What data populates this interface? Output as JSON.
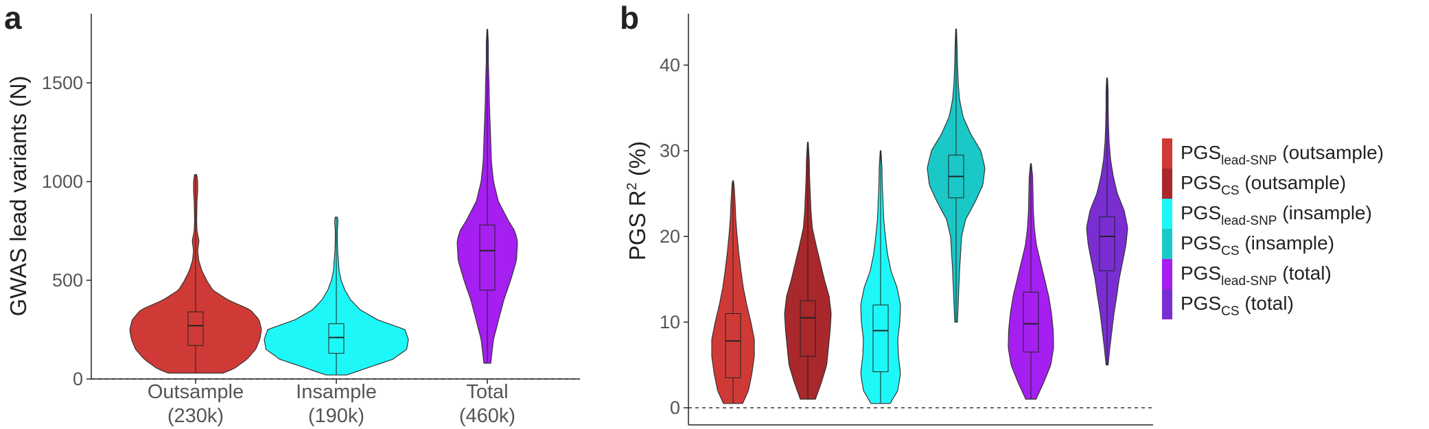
{
  "colors": {
    "red": "#D03A36",
    "darkred": "#A8282B",
    "cyan": "#1EF7F7",
    "teal": "#1BC8C8",
    "purple": "#A51FF0",
    "darkpurple": "#7A2ED2"
  },
  "panels": {
    "a": {
      "letter": "a"
    },
    "b": {
      "letter": "b"
    }
  },
  "legend": {
    "items": [
      {
        "base": "PGS",
        "sub": "lead-SNP",
        "suffix": " (outsample)",
        "color": "#D03A36"
      },
      {
        "base": "PGS",
        "sub": "CS",
        "suffix": " (outsample)",
        "color": "#A8282B"
      },
      {
        "base": "PGS",
        "sub": "lead-SNP",
        "suffix": " (insample)",
        "color": "#1EF7F7"
      },
      {
        "base": "PGS",
        "sub": "CS",
        "suffix": " (insample)",
        "color": "#1BC8C8"
      },
      {
        "base": "PGS",
        "sub": "lead-SNP",
        "suffix": " (total)",
        "color": "#A51FF0"
      },
      {
        "base": "PGS",
        "sub": "CS",
        "suffix": " (total)",
        "color": "#7A2ED2"
      }
    ]
  },
  "chart_data": [
    {
      "panel": "a",
      "type": "violin",
      "ylabel": "GWAS lead variants (N)",
      "ylim": [
        0,
        1850
      ],
      "yticks": [
        0,
        500,
        1000,
        1500
      ],
      "reference_line": 0,
      "categories": [
        {
          "line1": "Outsample",
          "line2": "(230k)"
        },
        {
          "line1": "Insample",
          "line2": "(190k)"
        },
        {
          "line1": "Total",
          "line2": "(460k)"
        }
      ],
      "series": [
        {
          "color": "#D03A36",
          "min": 30,
          "q1": 170,
          "median": 270,
          "q3": 340,
          "max": 1035,
          "profile": [
            [
              30,
              80
            ],
            [
              50,
              110
            ],
            [
              100,
              150
            ],
            [
              150,
              175
            ],
            [
              200,
              187
            ],
            [
              250,
              192
            ],
            [
              300,
              185
            ],
            [
              350,
              160
            ],
            [
              400,
              95
            ],
            [
              450,
              50
            ],
            [
              500,
              32
            ],
            [
              550,
              18
            ],
            [
              600,
              9
            ],
            [
              650,
              6
            ],
            [
              700,
              10
            ],
            [
              750,
              4
            ],
            [
              800,
              3
            ],
            [
              900,
              4
            ],
            [
              950,
              6
            ],
            [
              1000,
              6
            ],
            [
              1035,
              3
            ]
          ]
        },
        {
          "color": "#1EF7F7",
          "min": 20,
          "q1": 130,
          "median": 210,
          "q3": 280,
          "max": 820,
          "profile": [
            [
              20,
              30
            ],
            [
              50,
              80
            ],
            [
              100,
              165
            ],
            [
              150,
              205
            ],
            [
              200,
              210
            ],
            [
              250,
              200
            ],
            [
              300,
              120
            ],
            [
              350,
              70
            ],
            [
              400,
              42
            ],
            [
              450,
              25
            ],
            [
              500,
              14
            ],
            [
              550,
              8
            ],
            [
              600,
              6
            ],
            [
              650,
              4
            ],
            [
              700,
              3
            ],
            [
              750,
              3
            ],
            [
              800,
              5
            ],
            [
              820,
              3
            ]
          ]
        },
        {
          "color": "#A51FF0",
          "min": 80,
          "q1": 450,
          "median": 650,
          "q3": 780,
          "max": 1770,
          "profile": [
            [
              80,
              10
            ],
            [
              200,
              18
            ],
            [
              300,
              33
            ],
            [
              400,
              48
            ],
            [
              500,
              68
            ],
            [
              600,
              85
            ],
            [
              700,
              88
            ],
            [
              750,
              80
            ],
            [
              800,
              62
            ],
            [
              900,
              32
            ],
            [
              1000,
              18
            ],
            [
              1100,
              12
            ],
            [
              1200,
              10
            ],
            [
              1300,
              8
            ],
            [
              1400,
              6
            ],
            [
              1500,
              5
            ],
            [
              1600,
              3
            ],
            [
              1700,
              3
            ],
            [
              1770,
              1
            ]
          ]
        }
      ]
    },
    {
      "panel": "b",
      "type": "violin",
      "ylabel_base": "PGS R",
      "ylabel_sup": "2",
      "ylabel_suffix": " (%)",
      "ylim": [
        -2,
        46
      ],
      "yticks": [
        0,
        10,
        20,
        30,
        40
      ],
      "reference_line": 0,
      "legend_position": "right",
      "series": [
        {
          "name": "PGS lead-SNP (outsample)",
          "color": "#D03A36",
          "min": 0.5,
          "q1": 3.5,
          "median": 7.8,
          "q3": 11,
          "max": 26.5,
          "profile": [
            [
              0.5,
              28
            ],
            [
              2,
              45
            ],
            [
              4,
              55
            ],
            [
              6,
              62
            ],
            [
              8,
              62
            ],
            [
              10,
              52
            ],
            [
              12,
              40
            ],
            [
              14,
              30
            ],
            [
              16,
              23
            ],
            [
              18,
              17
            ],
            [
              20,
              12
            ],
            [
              22,
              8
            ],
            [
              24,
              6
            ],
            [
              26,
              3
            ],
            [
              26.5,
              1
            ]
          ]
        },
        {
          "name": "PGS CS (outsample)",
          "color": "#A8282B",
          "min": 1,
          "q1": 6,
          "median": 10.5,
          "q3": 12.5,
          "max": 31,
          "profile": [
            [
              1,
              22
            ],
            [
              3,
              40
            ],
            [
              5,
              55
            ],
            [
              7,
              60
            ],
            [
              9,
              65
            ],
            [
              11,
              68
            ],
            [
              13,
              62
            ],
            [
              15,
              48
            ],
            [
              17,
              36
            ],
            [
              19,
              24
            ],
            [
              21,
              13
            ],
            [
              23,
              9
            ],
            [
              25,
              7
            ],
            [
              27,
              5
            ],
            [
              29,
              4
            ],
            [
              31,
              1
            ]
          ]
        },
        {
          "name": "PGS lead-SNP (insample)",
          "color": "#1EF7F7",
          "min": 0.5,
          "q1": 4.2,
          "median": 9,
          "q3": 12,
          "max": 30,
          "profile": [
            [
              0.5,
              28
            ],
            [
              2,
              50
            ],
            [
              4,
              58
            ],
            [
              6,
              52
            ],
            [
              8,
              50
            ],
            [
              10,
              56
            ],
            [
              12,
              58
            ],
            [
              14,
              48
            ],
            [
              16,
              30
            ],
            [
              18,
              20
            ],
            [
              20,
              14
            ],
            [
              22,
              9
            ],
            [
              24,
              7
            ],
            [
              26,
              5
            ],
            [
              28,
              4
            ],
            [
              30,
              1
            ]
          ]
        },
        {
          "name": "PGS CS (insample)",
          "color": "#1BC8C8",
          "min": 10,
          "q1": 24.5,
          "median": 27,
          "q3": 29.5,
          "max": 44.2,
          "profile": [
            [
              10,
              4
            ],
            [
              12,
              6
            ],
            [
              14,
              8
            ],
            [
              16,
              10
            ],
            [
              18,
              13
            ],
            [
              20,
              16
            ],
            [
              22,
              28
            ],
            [
              24,
              55
            ],
            [
              26,
              78
            ],
            [
              28,
              84
            ],
            [
              30,
              72
            ],
            [
              32,
              42
            ],
            [
              34,
              20
            ],
            [
              36,
              10
            ],
            [
              38,
              6
            ],
            [
              40,
              4
            ],
            [
              42,
              3
            ],
            [
              44.2,
              1
            ]
          ]
        },
        {
          "name": "PGS lead-SNP (total)",
          "color": "#A51FF0",
          "min": 1,
          "q1": 6.5,
          "median": 9.8,
          "q3": 13.5,
          "max": 28.5,
          "profile": [
            [
              1,
              15
            ],
            [
              3,
              38
            ],
            [
              5,
              58
            ],
            [
              7,
              66
            ],
            [
              9,
              65
            ],
            [
              11,
              60
            ],
            [
              13,
              52
            ],
            [
              15,
              40
            ],
            [
              17,
              28
            ],
            [
              19,
              16
            ],
            [
              21,
              10
            ],
            [
              23,
              7
            ],
            [
              25,
              6
            ],
            [
              27,
              5
            ],
            [
              28.5,
              1
            ]
          ]
        },
        {
          "name": "PGS CS (total)",
          "color": "#7A2ED2",
          "min": 5,
          "q1": 16,
          "median": 20,
          "q3": 22.3,
          "max": 38.5,
          "profile": [
            [
              5,
              3
            ],
            [
              7,
              8
            ],
            [
              9,
              14
            ],
            [
              11,
              20
            ],
            [
              13,
              28
            ],
            [
              15,
              35
            ],
            [
              17,
              45
            ],
            [
              19,
              55
            ],
            [
              21,
              60
            ],
            [
              23,
              50
            ],
            [
              25,
              30
            ],
            [
              27,
              18
            ],
            [
              29,
              10
            ],
            [
              31,
              6
            ],
            [
              33,
              4
            ],
            [
              35,
              3
            ],
            [
              37,
              3
            ],
            [
              38.5,
              1
            ]
          ]
        }
      ]
    }
  ]
}
